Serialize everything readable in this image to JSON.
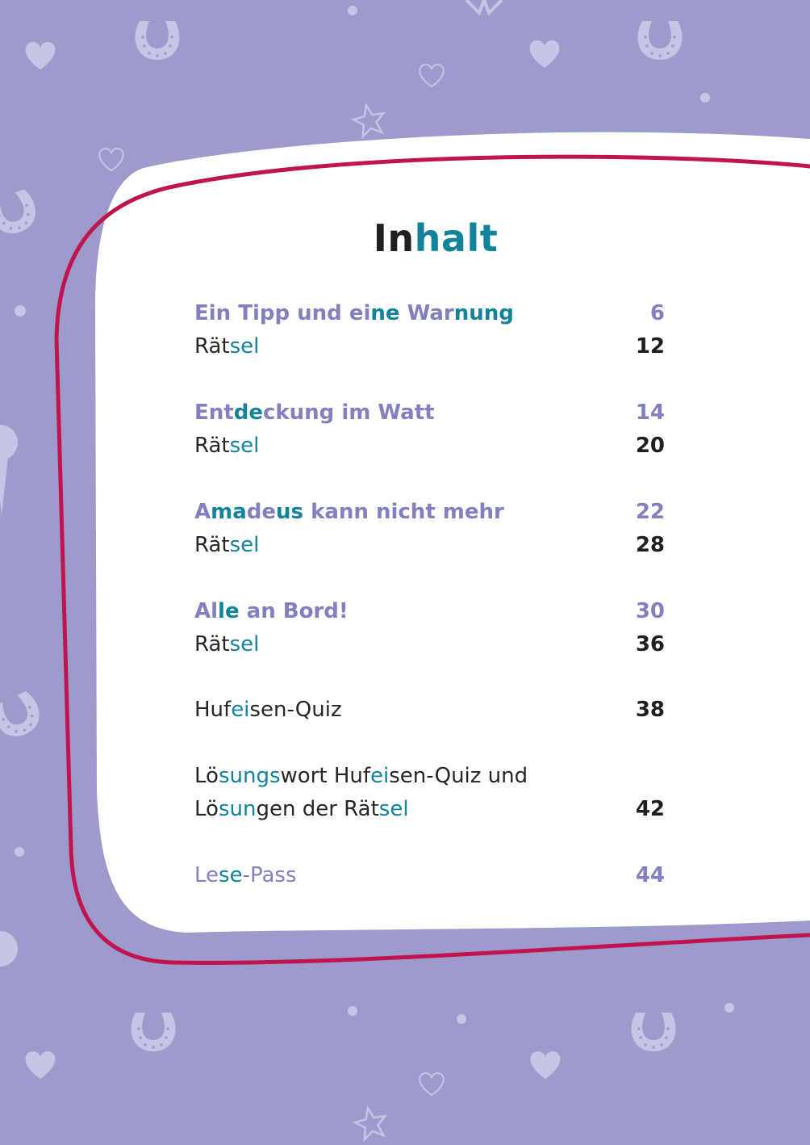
{
  "title": {
    "a": "In",
    "b": "halt"
  },
  "entries": [
    {
      "parts": [
        "Ein Tipp und ei",
        "ne",
        " War",
        "nung"
      ],
      "page": "6"
    },
    {
      "parts": [
        "Rät",
        "sel"
      ],
      "page": "12"
    },
    {
      "parts": [
        "Ent",
        "de",
        "ckung im Watt"
      ],
      "page": "14"
    },
    {
      "parts": [
        "Rät",
        "sel"
      ],
      "page": "20"
    },
    {
      "parts": [
        "A",
        "ma",
        "de",
        "us",
        " kann nicht mehr"
      ],
      "page": "22"
    },
    {
      "parts": [
        "Rät",
        "sel"
      ],
      "page": "28"
    },
    {
      "parts": [
        "Al",
        "le",
        " an Bord!"
      ],
      "page": "30"
    },
    {
      "parts": [
        "Rät",
        "sel"
      ],
      "page": "36"
    },
    {
      "parts": [
        "Huf",
        "ei",
        "sen-Quiz"
      ],
      "page": "38"
    },
    {
      "parts": [
        "Lö",
        "sungs",
        "wort Huf",
        "ei",
        "sen-Quiz und"
      ]
    },
    {
      "parts": [
        "Lö",
        "sun",
        "gen der Rät",
        "sel"
      ],
      "page": "42"
    },
    {
      "parts": [
        "Le",
        "se",
        "-Pass"
      ],
      "page": "44"
    }
  ],
  "icons": [
    "horseshoe-icon",
    "heart-icon",
    "heart-outline-icon",
    "star-outline-icon",
    "dot-icon",
    "rosette-icon",
    "bow-icon"
  ],
  "colors": {
    "background": "#9d9bcc",
    "card": "#ffffff",
    "frame": "#c0144f",
    "chapter_text": "#8280bf",
    "syllable_highlight": "#12839a",
    "body_text": "#262626",
    "pattern": "#c7c5e6"
  }
}
